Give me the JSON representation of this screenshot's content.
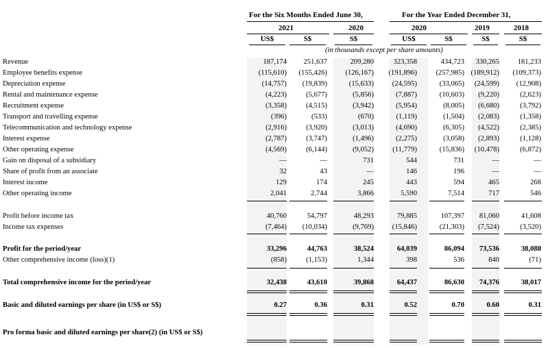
{
  "headers": {
    "group1": "For the Six Months Ended June 30,",
    "group2": "For the Year Ended December 31,",
    "years": [
      "2021",
      "2020",
      "2020",
      "2019",
      "2018"
    ],
    "currencies": [
      "US$",
      "S$",
      "S$",
      "US$",
      "S$",
      "S$",
      "S$"
    ],
    "note": "(in thousands except per share amounts)"
  },
  "rows": [
    {
      "label": "Revenue",
      "values": [
        "187,174",
        "251,637",
        "209,280",
        "323,358",
        "434,723",
        "330,265",
        "181,233"
      ]
    },
    {
      "label": "Employee benefits expense",
      "values": [
        "(115,610)",
        "(155,426)",
        "(126,167)",
        "(191,896)",
        "(257,985)",
        "(189,912)",
        "(109,373)"
      ]
    },
    {
      "label": "Depreciation expense",
      "values": [
        "(14,757)",
        "(19,839)",
        "(15,633)",
        "(24,595)",
        "(33,065)",
        "(24,599)",
        "(12,908)"
      ]
    },
    {
      "label": "Rental and maintenance expense",
      "values": [
        "(4,223)",
        "(5,677)",
        "(5,856)",
        "(7,887)",
        "(10,603)",
        "(9,220)",
        "(2,623)"
      ]
    },
    {
      "label": "Recruitment expense",
      "values": [
        "(3,358)",
        "(4,515)",
        "(3,942)",
        "(5,954)",
        "(8,005)",
        "(6,680)",
        "(3,792)"
      ]
    },
    {
      "label": "Transport and travelling expense",
      "values": [
        "(396)",
        "(533)",
        "(670)",
        "(1,119)",
        "(1,504)",
        "(2,083)",
        "(1,358)"
      ]
    },
    {
      "label": "Telecommunication and technology expense",
      "values": [
        "(2,916)",
        "(3,920)",
        "(3,013)",
        "(4,690)",
        "(6,305)",
        "(4,522)",
        "(2,385)"
      ]
    },
    {
      "label": "Interest expense",
      "values": [
        "(2,787)",
        "(3,747)",
        "(1,496)",
        "(2,275)",
        "(3,058)",
        "(2,893)",
        "(1,128)"
      ]
    },
    {
      "label": "Other operating expense",
      "values": [
        "(4,569)",
        "(6,144)",
        "(9,052)",
        "(11,779)",
        "(15,836)",
        "(10,478)",
        "(6,872)"
      ]
    },
    {
      "label": "Gain on disposal of a subsidiary",
      "values": [
        "—",
        "—",
        "731",
        "544",
        "731",
        "—",
        "—"
      ]
    },
    {
      "label": "Share of profit from an associate",
      "values": [
        "32",
        "43",
        "—",
        "146",
        "196",
        "—",
        "—"
      ]
    },
    {
      "label": "Interest income",
      "values": [
        "129",
        "174",
        "245",
        "443",
        "594",
        "465",
        "268"
      ]
    },
    {
      "label": "Other operating income",
      "values": [
        "2,041",
        "2,744",
        "3,866",
        "5,590",
        "7,514",
        "717",
        "546"
      ]
    },
    {
      "label": "Profit before income tax",
      "values": [
        "40,760",
        "54,797",
        "48,293",
        "79,885",
        "107,397",
        "81,060",
        "41,608"
      ]
    },
    {
      "label": "Income tax expenses",
      "values": [
        "(7,464)",
        "(10,034)",
        "(9,769)",
        "(15,846)",
        "(21,303)",
        "(7,524)",
        "(3,520)"
      ]
    },
    {
      "label": "Profit for the period/year",
      "values": [
        "33,296",
        "44,763",
        "38,524",
        "64,039",
        "86,094",
        "73,536",
        "38,088"
      ]
    },
    {
      "label": "Other comprehensive income (loss)(1)",
      "values": [
        "(858)",
        "(1,153)",
        "1,344",
        "398",
        "536",
        "840",
        "(71)"
      ]
    },
    {
      "label": "Total comprehensive income for the period/year",
      "values": [
        "32,438",
        "43,610",
        "39,868",
        "64,437",
        "86,630",
        "74,376",
        "38,017"
      ]
    },
    {
      "label": "Basic and diluted earnings per share (in US$ or S$)",
      "values": [
        "0.27",
        "0.36",
        "0.31",
        "0.52",
        "0.70",
        "0.60",
        "0.31"
      ]
    },
    {
      "label": "Pro forma basic and diluted earnings per share(2) (in US$ or S$)",
      "values": [
        "",
        "",
        "",
        "",
        "",
        "",
        ""
      ]
    }
  ]
}
